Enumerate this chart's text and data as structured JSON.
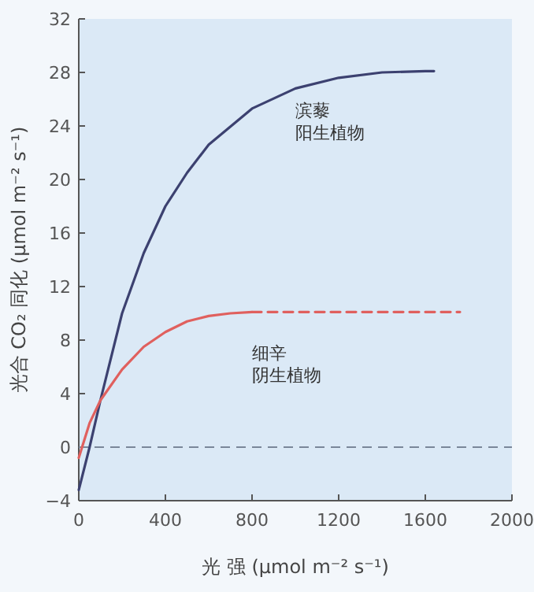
{
  "chart_data": {
    "type": "line",
    "xlabel": "光 强 (μmol m⁻² s⁻¹)",
    "ylabel": "光合 CO₂ 同化 (μmol m⁻² s⁻¹)",
    "xlim": [
      0,
      2000
    ],
    "xticks": [
      0,
      400,
      800,
      1200,
      1600,
      2000
    ],
    "ylim": [
      -4,
      32
    ],
    "yticks": [
      -4,
      0,
      4,
      8,
      12,
      16,
      20,
      24,
      28,
      32
    ],
    "series": [
      {
        "name": "滨藜阳生植物",
        "color": "#3c4170",
        "line_style": "solid",
        "x": [
          0,
          50,
          100,
          200,
          300,
          400,
          500,
          600,
          800,
          1000,
          1200,
          1400,
          1600,
          1640
        ],
        "values": [
          -3.2,
          0,
          3.5,
          10,
          14.5,
          18,
          20.5,
          22.6,
          25.3,
          26.8,
          27.6,
          28,
          28.1,
          28.1
        ]
      },
      {
        "name": "细辛阴生植物",
        "color": "#e0605e",
        "line_style": "solid",
        "x": [
          0,
          50,
          100,
          200,
          300,
          400,
          500,
          600,
          700,
          800
        ],
        "values": [
          -0.8,
          1.8,
          3.5,
          5.8,
          7.5,
          8.6,
          9.4,
          9.8,
          10,
          10.1
        ]
      },
      {
        "color": "#e0605e",
        "line_style": "dashed",
        "x": [
          800,
          1760
        ],
        "values": [
          10.1,
          10.1
        ]
      }
    ],
    "ref_lines": [
      {
        "axis": "y",
        "value": 0,
        "color": "#7a8699",
        "line_style": "dashed"
      }
    ]
  }
}
